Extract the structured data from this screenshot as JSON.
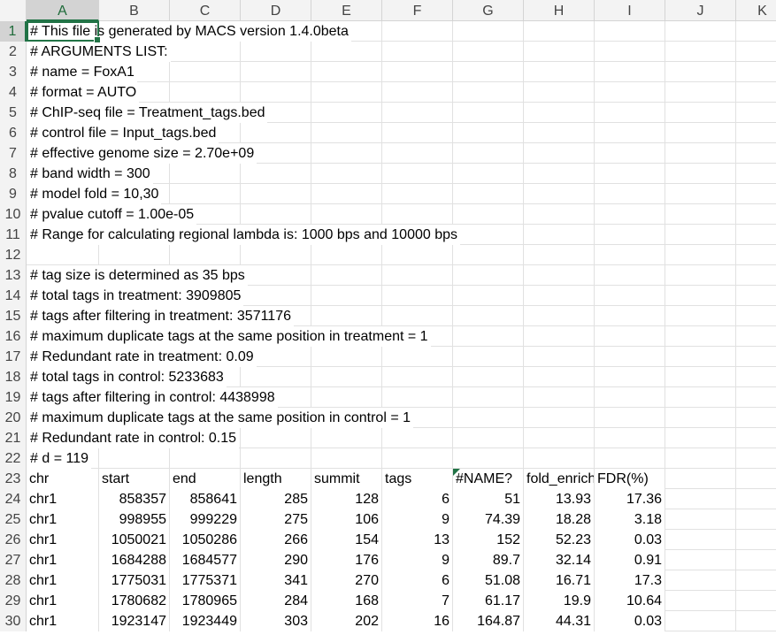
{
  "columns": [
    "A",
    "B",
    "C",
    "D",
    "E",
    "F",
    "G",
    "H",
    "I",
    "J",
    "K"
  ],
  "rows": [
    {
      "n": "1",
      "text": "# This file is generated by MACS version 1.4.0beta"
    },
    {
      "n": "2",
      "text": "# ARGUMENTS LIST:"
    },
    {
      "n": "3",
      "text": "# name = FoxA1"
    },
    {
      "n": "4",
      "text": "# format = AUTO"
    },
    {
      "n": "5",
      "text": "# ChIP-seq file = Treatment_tags.bed"
    },
    {
      "n": "6",
      "text": "# control file = Input_tags.bed"
    },
    {
      "n": "7",
      "text": "# effective genome size = 2.70e+09"
    },
    {
      "n": "8",
      "text": "# band width = 300"
    },
    {
      "n": "9",
      "text": "# model fold = 10,30"
    },
    {
      "n": "10",
      "text": "# pvalue cutoff = 1.00e-05"
    },
    {
      "n": "11",
      "text": "# Range for calculating regional lambda is: 1000 bps and 10000 bps"
    },
    {
      "n": "12",
      "text": ""
    },
    {
      "n": "13",
      "text": "# tag size is determined as 35 bps"
    },
    {
      "n": "14",
      "text": "# total tags in treatment: 3909805"
    },
    {
      "n": "15",
      "text": "# tags after filtering in treatment: 3571176"
    },
    {
      "n": "16",
      "text": "# maximum duplicate tags at the same position in treatment = 1"
    },
    {
      "n": "17",
      "text": "# Redundant rate in treatment: 0.09"
    },
    {
      "n": "18",
      "text": "# total tags in control: 5233683"
    },
    {
      "n": "19",
      "text": "# tags after filtering in control: 4438998"
    },
    {
      "n": "20",
      "text": "# maximum duplicate tags at the same position in control = 1"
    },
    {
      "n": "21",
      "text": "# Redundant rate in control: 0.15"
    },
    {
      "n": "22",
      "text": "# d = 119"
    }
  ],
  "table": {
    "header_row": "23",
    "headers": [
      "chr",
      "start",
      "end",
      "length",
      "summit",
      "tags",
      "#NAME?",
      "fold_enrichment",
      "FDR(%)"
    ],
    "data": [
      {
        "n": "24",
        "cells": [
          "chr1",
          "858357",
          "858641",
          "285",
          "128",
          "6",
          "51",
          "13.93",
          "17.36"
        ]
      },
      {
        "n": "25",
        "cells": [
          "chr1",
          "998955",
          "999229",
          "275",
          "106",
          "9",
          "74.39",
          "18.28",
          "3.18"
        ]
      },
      {
        "n": "26",
        "cells": [
          "chr1",
          "1050021",
          "1050286",
          "266",
          "154",
          "13",
          "152",
          "52.23",
          "0.03"
        ]
      },
      {
        "n": "27",
        "cells": [
          "chr1",
          "1684288",
          "1684577",
          "290",
          "176",
          "9",
          "89.7",
          "32.14",
          "0.91"
        ]
      },
      {
        "n": "28",
        "cells": [
          "chr1",
          "1775031",
          "1775371",
          "341",
          "270",
          "6",
          "51.08",
          "16.71",
          "17.3"
        ]
      },
      {
        "n": "29",
        "cells": [
          "chr1",
          "1780682",
          "1780965",
          "284",
          "168",
          "7",
          "61.17",
          "19.9",
          "10.64"
        ]
      },
      {
        "n": "30",
        "cells": [
          "chr1",
          "1923147",
          "1923449",
          "303",
          "202",
          "16",
          "164.87",
          "44.31",
          "0.03"
        ]
      }
    ]
  }
}
